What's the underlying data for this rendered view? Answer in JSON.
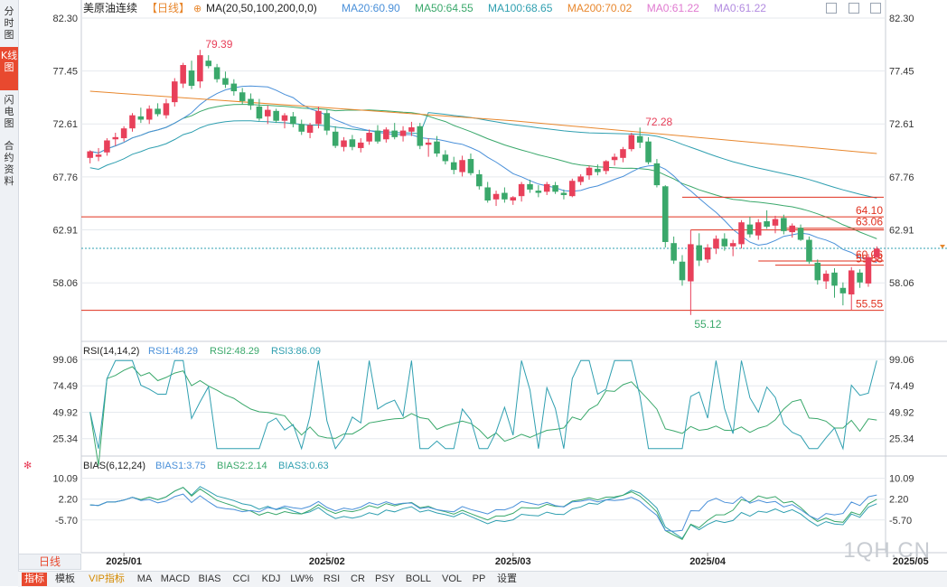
{
  "side_tabs": [
    {
      "label": "分时图",
      "active": false
    },
    {
      "label": "K线图",
      "active": true
    },
    {
      "label": "闪电图",
      "active": false
    },
    {
      "label": "合约资料",
      "active": false
    }
  ],
  "legend": {
    "instrument": "美原油连续",
    "period_tag": "【日线】",
    "ma_params": "MA(20,50,100,200,0,0)",
    "items": [
      {
        "text": "MA20:60.90",
        "color": "#4a90d9"
      },
      {
        "text": "MA50:64.55",
        "color": "#3aa86b"
      },
      {
        "text": "MA100:68.65",
        "color": "#2f9fb0"
      },
      {
        "text": "MA200:70.02",
        "color": "#e8872d"
      },
      {
        "text": "MA0:61.22",
        "color": "#e07ad0"
      },
      {
        "text": "MA0:61.22",
        "color": "#b28be0"
      }
    ]
  },
  "rsi_legend": {
    "title": "RSI(14,14,2)",
    "items": [
      {
        "text": "RSI1:48.29",
        "color": "#4a90d9"
      },
      {
        "text": "RSI2:48.29",
        "color": "#3aa86b"
      },
      {
        "text": "RSI3:86.09",
        "color": "#2f9fb0"
      }
    ]
  },
  "bias_legend": {
    "title": "BIAS(6,12,24)",
    "items": [
      {
        "text": "BIAS1:3.75",
        "color": "#4a90d9"
      },
      {
        "text": "BIAS2:2.14",
        "color": "#3aa86b"
      },
      {
        "text": "BIAS3:0.63",
        "color": "#2f9fb0"
      }
    ]
  },
  "period_tab": "日线",
  "watermark": "1QH.CN",
  "buttons": [
    "指标",
    "模板",
    "VIP指标",
    "MA",
    "MACD",
    "BIAS",
    "CCI",
    "KDJ",
    "LW%",
    "RSI",
    "CR",
    "PSY",
    "BOLL",
    "VOL",
    "PP",
    "设置"
  ],
  "colors": {
    "up": "#e8405a",
    "down": "#3aa86b",
    "ma20": "#4a90d9",
    "ma50": "#3aa86b",
    "ma100": "#2f9fb0",
    "ma200": "#e8872d",
    "hline": "#e0301e",
    "grid": "#e6e9ee"
  },
  "chart_data": {
    "type": "candlestick",
    "instrument": "美原油连续",
    "y_ticks": [
      "82.30",
      "77.45",
      "72.61",
      "67.76",
      "62.91",
      "58.06"
    ],
    "ylim": [
      53.2,
      82.3
    ],
    "x_ticks": [
      "2025/01",
      "2025/02",
      "2025/03",
      "2025/04",
      "2025/05"
    ],
    "x_tick_index": [
      4,
      28,
      50,
      73,
      97
    ],
    "candles_ohlc": [
      [
        69.5,
        70.2,
        69.0,
        70.1
      ],
      [
        69.6,
        70.4,
        69.2,
        69.8
      ],
      [
        70.0,
        71.3,
        69.7,
        71.1
      ],
      [
        71.2,
        71.8,
        70.6,
        71.4
      ],
      [
        71.3,
        72.4,
        71.0,
        72.2
      ],
      [
        72.2,
        73.6,
        71.9,
        73.4
      ],
      [
        73.3,
        74.1,
        72.7,
        73.0
      ],
      [
        73.0,
        74.3,
        72.6,
        74.0
      ],
      [
        74.0,
        74.5,
        73.3,
        73.5
      ],
      [
        73.4,
        74.9,
        73.1,
        74.5
      ],
      [
        74.6,
        76.8,
        74.2,
        76.5
      ],
      [
        76.3,
        78.2,
        75.9,
        78.0
      ],
      [
        77.5,
        78.4,
        75.8,
        76.1
      ],
      [
        76.5,
        79.39,
        75.9,
        78.9
      ],
      [
        78.4,
        78.9,
        77.7,
        77.9
      ],
      [
        77.8,
        78.1,
        76.4,
        76.7
      ],
      [
        76.8,
        77.4,
        75.9,
        76.2
      ],
      [
        76.3,
        76.7,
        75.2,
        75.6
      ],
      [
        75.5,
        75.9,
        74.4,
        74.7
      ],
      [
        74.9,
        75.4,
        73.9,
        74.3
      ],
      [
        74.2,
        74.9,
        72.9,
        73.1
      ],
      [
        73.3,
        74.3,
        72.6,
        73.9
      ],
      [
        73.8,
        74.0,
        72.7,
        72.9
      ],
      [
        72.9,
        73.6,
        72.2,
        73.4
      ],
      [
        73.3,
        73.7,
        72.3,
        72.6
      ],
      [
        72.6,
        73.0,
        71.6,
        71.9
      ],
      [
        71.8,
        72.7,
        71.3,
        72.5
      ],
      [
        72.6,
        74.2,
        72.2,
        73.8
      ],
      [
        73.6,
        73.9,
        71.6,
        72.0
      ],
      [
        71.9,
        72.4,
        70.4,
        70.6
      ],
      [
        70.5,
        71.4,
        70.1,
        71.1
      ],
      [
        71.2,
        71.6,
        70.2,
        70.5
      ],
      [
        70.4,
        71.3,
        70.0,
        70.9
      ],
      [
        71.0,
        72.1,
        70.7,
        71.8
      ],
      [
        72.0,
        72.5,
        70.8,
        71.0
      ],
      [
        71.2,
        72.3,
        70.9,
        72.1
      ],
      [
        72.0,
        72.7,
        71.2,
        71.4
      ],
      [
        71.5,
        72.4,
        71.0,
        72.0
      ],
      [
        71.9,
        72.8,
        71.5,
        72.3
      ],
      [
        72.4,
        72.7,
        70.3,
        70.6
      ],
      [
        70.7,
        71.3,
        69.6,
        70.9
      ],
      [
        71.0,
        71.5,
        69.6,
        69.9
      ],
      [
        69.8,
        70.2,
        68.9,
        69.2
      ],
      [
        69.1,
        69.6,
        68.0,
        68.4
      ],
      [
        68.2,
        69.7,
        67.8,
        69.3
      ],
      [
        69.4,
        69.9,
        67.9,
        68.1
      ],
      [
        68.0,
        68.4,
        66.6,
        66.9
      ],
      [
        66.8,
        67.3,
        65.4,
        65.6
      ],
      [
        65.7,
        66.5,
        65.1,
        66.2
      ],
      [
        66.3,
        66.8,
        65.4,
        65.7
      ],
      [
        65.6,
        66.0,
        65.2,
        65.9
      ],
      [
        66.0,
        67.3,
        65.5,
        67.1
      ],
      [
        67.1,
        67.5,
        66.3,
        66.6
      ],
      [
        66.5,
        67.0,
        65.9,
        66.3
      ],
      [
        66.4,
        67.3,
        66.1,
        67.1
      ],
      [
        67.0,
        67.3,
        66.2,
        66.4
      ],
      [
        66.3,
        66.6,
        65.7,
        66.1
      ],
      [
        66.0,
        67.6,
        65.9,
        67.4
      ],
      [
        67.3,
        68.0,
        67.0,
        67.8
      ],
      [
        67.9,
        68.8,
        67.5,
        68.6
      ],
      [
        68.5,
        68.9,
        67.9,
        68.2
      ],
      [
        68.3,
        69.3,
        68.0,
        69.2
      ],
      [
        69.3,
        69.9,
        68.8,
        69.6
      ],
      [
        69.5,
        70.5,
        69.1,
        70.3
      ],
      [
        70.3,
        71.8,
        70.1,
        71.6
      ],
      [
        71.5,
        72.28,
        70.4,
        70.9
      ],
      [
        71.0,
        71.4,
        68.9,
        69.1
      ],
      [
        69.0,
        69.4,
        66.8,
        67.0
      ],
      [
        66.9,
        67.0,
        61.3,
        61.8
      ],
      [
        61.7,
        62.3,
        59.8,
        60.1
      ],
      [
        60.0,
        60.6,
        57.8,
        58.3
      ],
      [
        58.2,
        62.9,
        55.12,
        61.6
      ],
      [
        61.5,
        62.6,
        59.6,
        60.1
      ],
      [
        60.2,
        61.6,
        59.9,
        61.3
      ],
      [
        61.2,
        62.4,
        60.7,
        62.1
      ],
      [
        62.1,
        62.6,
        61.0,
        61.4
      ],
      [
        61.4,
        62.0,
        60.5,
        61.7
      ],
      [
        61.6,
        63.8,
        61.2,
        63.6
      ],
      [
        63.4,
        64.1,
        62.2,
        62.5
      ],
      [
        62.4,
        63.9,
        62.0,
        63.6
      ],
      [
        63.7,
        64.7,
        63.0,
        63.2
      ],
      [
        63.3,
        64.2,
        62.6,
        63.9
      ],
      [
        64.0,
        64.3,
        62.5,
        62.8
      ],
      [
        62.7,
        63.5,
        62.2,
        63.3
      ],
      [
        63.1,
        63.4,
        61.9,
        62.0
      ],
      [
        62.0,
        62.3,
        59.8,
        60.0
      ],
      [
        59.9,
        60.2,
        57.9,
        58.3
      ],
      [
        58.2,
        59.2,
        57.5,
        58.9
      ],
      [
        59.0,
        59.4,
        56.7,
        57.8
      ],
      [
        57.6,
        58.1,
        56.0,
        57.1
      ],
      [
        57.0,
        59.5,
        55.6,
        59.2
      ],
      [
        59.0,
        59.3,
        57.6,
        58.1
      ],
      [
        58.0,
        60.7,
        57.7,
        60.4
      ],
      [
        60.4,
        61.4,
        60.0,
        61.2
      ]
    ],
    "high_label": 79.39,
    "secondary_high_label": 72.28,
    "low_label": 55.12,
    "horizontal_levels": [
      64.1,
      63.06,
      60.06,
      59.68,
      55.55
    ],
    "current_price_line": 61.22,
    "rsi": {
      "y_ticks": [
        "99.06",
        "74.49",
        "49.92",
        "25.34"
      ],
      "ylim": [
        15,
        99.06
      ]
    },
    "bias": {
      "y_ticks": [
        "10.09",
        "2.20",
        "-5.70"
      ],
      "ylim": [
        -14,
        11
      ]
    }
  }
}
